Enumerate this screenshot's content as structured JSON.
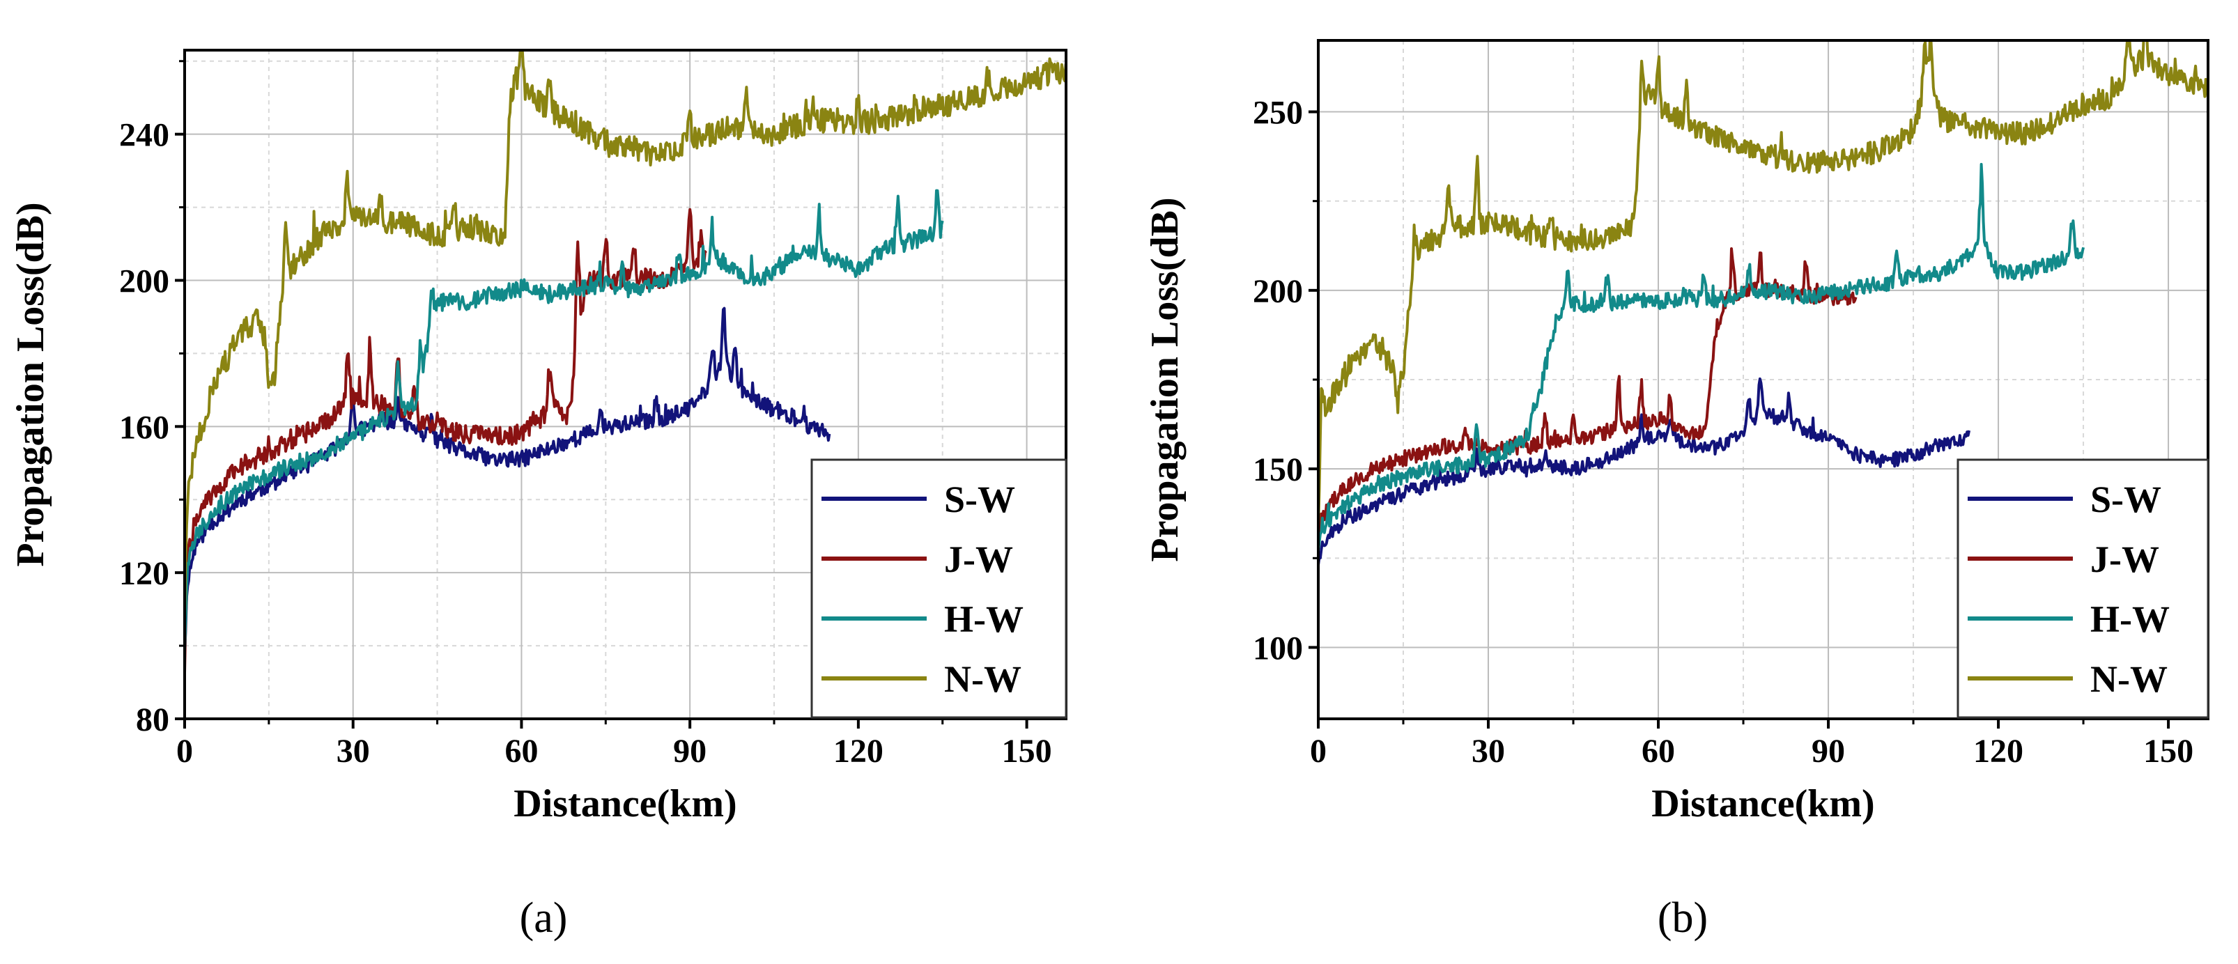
{
  "chart_data": [
    {
      "type": "line",
      "caption": "(a)",
      "xlabel": "Distance(km)",
      "ylabel": "Propagation Loss(dB)",
      "xlim": [
        0,
        157
      ],
      "ylim": [
        80,
        263
      ],
      "xticks": [
        0,
        30,
        60,
        90,
        120,
        150
      ],
      "xtick_labels": [
        "0",
        "30",
        "60",
        "90",
        "120",
        "150"
      ],
      "yticks": [
        80,
        120,
        160,
        200,
        240
      ],
      "ytick_labels": [
        "80",
        "120",
        "160",
        "200",
        "240"
      ],
      "grid": true,
      "legend_position": "bottom-right",
      "series": [
        {
          "name": "S-W",
          "color": "#12137a",
          "seed": 11,
          "noise": 2.2,
          "spikes": [
            [
              30,
              12
            ],
            [
              38,
              10
            ],
            [
              44,
              8
            ],
            [
              74,
              6
            ],
            [
              84,
              8
            ],
            [
              94,
              14
            ],
            [
              96,
              18
            ],
            [
              98,
              12
            ]
          ],
          "x": [
            0,
            0.5,
            2,
            5,
            10,
            15,
            20,
            25,
            30,
            35,
            40,
            45,
            50,
            55,
            60,
            65,
            70,
            75,
            80,
            85,
            90,
            93,
            96,
            98,
            100,
            103,
            106,
            110,
            115
          ],
          "y": [
            98,
            118,
            128,
            134,
            140,
            144,
            148,
            152,
            158,
            162,
            160,
            156,
            153,
            151,
            151,
            154,
            157,
            160,
            161,
            162,
            165,
            170,
            178,
            172,
            168,
            166,
            164,
            161,
            158
          ]
        },
        {
          "name": "J-W",
          "color": "#8a1212",
          "seed": 22,
          "noise": 2.6,
          "spikes": [
            [
              29,
              16
            ],
            [
              33,
              20
            ],
            [
              38,
              22
            ],
            [
              41,
              14
            ],
            [
              65,
              14
            ],
            [
              70,
              28
            ],
            [
              75,
              12
            ],
            [
              80,
              10
            ],
            [
              90,
              20
            ],
            [
              92,
              12
            ]
          ],
          "x": [
            0,
            0.5,
            2,
            5,
            10,
            15,
            20,
            25,
            28,
            30,
            35,
            40,
            45,
            50,
            55,
            60,
            64,
            66,
            68,
            69,
            70,
            72,
            75,
            80,
            85,
            90,
            93
          ],
          "y": [
            94,
            125,
            135,
            142,
            149,
            153,
            157,
            161,
            165,
            168,
            166,
            162,
            160,
            158,
            157,
            158,
            163,
            168,
            162,
            170,
            188,
            200,
            200,
            201,
            200,
            204,
            206
          ]
        },
        {
          "name": "H-W",
          "color": "#128a8a",
          "seed": 33,
          "noise": 2.4,
          "spikes": [
            [
              38,
              14
            ],
            [
              42,
              18
            ],
            [
              44,
              12
            ],
            [
              78,
              8
            ],
            [
              88,
              10
            ],
            [
              94,
              12
            ],
            [
              113,
              14
            ],
            [
              127,
              16
            ],
            [
              134,
              14
            ]
          ],
          "x": [
            0,
            0.5,
            2,
            5,
            10,
            15,
            20,
            25,
            30,
            35,
            40,
            42,
            43,
            44,
            45,
            50,
            55,
            60,
            65,
            70,
            75,
            80,
            85,
            90,
            95,
            100,
            105,
            110,
            115,
            120,
            125,
            130,
            135
          ],
          "y": [
            100,
            122,
            130,
            137,
            143,
            147,
            150,
            153,
            157,
            162,
            165,
            168,
            180,
            190,
            194,
            194,
            196,
            198,
            196,
            198,
            199,
            197,
            199,
            202,
            206,
            200,
            202,
            209,
            206,
            203,
            209,
            211,
            214
          ]
        },
        {
          "name": "N-W",
          "color": "#8a8412",
          "seed": 44,
          "noise": 3.4,
          "spikes": [
            [
              15,
              -16
            ],
            [
              18,
              14
            ],
            [
              29,
              16
            ],
            [
              35,
              10
            ],
            [
              48,
              10
            ],
            [
              60,
              10
            ],
            [
              65,
              10
            ],
            [
              90,
              8
            ],
            [
              100,
              8
            ],
            [
              112,
              8
            ],
            [
              120,
              8
            ],
            [
              143,
              8
            ]
          ],
          "x": [
            0,
            0.5,
            2,
            5,
            8,
            10,
            13,
            15,
            16,
            17,
            18,
            20,
            25,
            30,
            35,
            40,
            45,
            50,
            52,
            55,
            57,
            58,
            59,
            62,
            65,
            70,
            75,
            80,
            85,
            90,
            95,
            100,
            105,
            110,
            115,
            120,
            125,
            130,
            135,
            140,
            145,
            150,
            157
          ],
          "y": [
            110,
            140,
            155,
            170,
            180,
            185,
            190,
            180,
            172,
            192,
            202,
            205,
            214,
            217,
            216,
            215,
            212,
            214,
            215,
            212,
            210,
            250,
            256,
            250,
            247,
            242,
            238,
            236,
            234,
            238,
            241,
            242,
            240,
            243,
            244,
            243,
            244,
            246,
            248,
            250,
            252,
            254,
            258
          ]
        }
      ]
    },
    {
      "type": "line",
      "caption": "(b)",
      "xlabel": "Distance(km)",
      "ylabel": "Propagation Loss(dB)",
      "xlim": [
        0,
        157
      ],
      "ylim": [
        80,
        270
      ],
      "xticks": [
        0,
        30,
        60,
        90,
        120,
        150
      ],
      "xtick_labels": [
        "0",
        "30",
        "60",
        "90",
        "120",
        "150"
      ],
      "yticks": [
        100,
        150,
        200,
        250
      ],
      "ytick_labels": [
        "100",
        "150",
        "200",
        "250"
      ],
      "grid": true,
      "legend_position": "bottom-right",
      "series": [
        {
          "name": "S-W",
          "color": "#12137a",
          "seed": 55,
          "noise": 2.0,
          "spikes": [
            [
              28,
              8
            ],
            [
              40,
              6
            ],
            [
              57,
              8
            ],
            [
              62,
              8
            ],
            [
              76,
              10
            ],
            [
              78,
              12
            ],
            [
              83,
              8
            ]
          ],
          "x": [
            0,
            0.5,
            2,
            5,
            10,
            15,
            20,
            25,
            30,
            35,
            40,
            45,
            50,
            55,
            60,
            65,
            70,
            75,
            78,
            80,
            85,
            90,
            95,
            100,
            105,
            110,
            115
          ],
          "y": [
            124,
            128,
            132,
            136,
            140,
            143,
            146,
            148,
            150,
            151,
            151,
            150,
            152,
            156,
            160,
            157,
            156,
            160,
            166,
            165,
            162,
            158,
            154,
            152,
            154,
            157,
            159
          ]
        },
        {
          "name": "J-W",
          "color": "#8a1212",
          "seed": 66,
          "noise": 2.2,
          "spikes": [
            [
              26,
              8
            ],
            [
              40,
              12
            ],
            [
              45,
              10
            ],
            [
              53,
              18
            ],
            [
              57,
              12
            ],
            [
              62,
              10
            ],
            [
              73,
              16
            ],
            [
              78,
              12
            ],
            [
              86,
              14
            ]
          ],
          "x": [
            0,
            0.5,
            2,
            5,
            10,
            15,
            20,
            25,
            30,
            35,
            40,
            45,
            50,
            55,
            60,
            65,
            68,
            69,
            70,
            72,
            75,
            80,
            85,
            90,
            95
          ],
          "y": [
            130,
            136,
            140,
            145,
            150,
            153,
            155,
            157,
            156,
            156,
            157,
            158,
            160,
            162,
            164,
            160,
            160,
            170,
            188,
            198,
            200,
            200,
            199,
            198,
            198
          ]
        },
        {
          "name": "H-W",
          "color": "#128a8a",
          "seed": 77,
          "noise": 2.2,
          "spikes": [
            [
              28,
              12
            ],
            [
              38,
              8
            ],
            [
              44,
              12
            ],
            [
              51,
              10
            ],
            [
              68,
              8
            ],
            [
              76,
              8
            ],
            [
              102,
              10
            ],
            [
              117,
              24
            ],
            [
              133,
              14
            ]
          ],
          "x": [
            0,
            0.5,
            2,
            5,
            10,
            15,
            20,
            25,
            30,
            35,
            38,
            40,
            42,
            44,
            45,
            50,
            55,
            60,
            65,
            70,
            75,
            80,
            85,
            90,
            95,
            100,
            105,
            110,
            115,
            117,
            120,
            125,
            130,
            135
          ],
          "y": [
            128,
            132,
            136,
            140,
            145,
            148,
            150,
            151,
            153,
            156,
            162,
            178,
            192,
            196,
            196,
            196,
            197,
            197,
            198,
            197,
            199,
            200,
            198,
            199,
            201,
            202,
            204,
            205,
            210,
            214,
            205,
            205,
            208,
            211
          ]
        },
        {
          "name": "N-W",
          "color": "#8a8412",
          "seed": 88,
          "noise": 3.2,
          "spikes": [
            [
              0.6,
              22
            ],
            [
              14,
              -12
            ],
            [
              17,
              12
            ],
            [
              23,
              14
            ],
            [
              28,
              22
            ],
            [
              41,
              10
            ],
            [
              57,
              14
            ],
            [
              60,
              16
            ],
            [
              65,
              12
            ],
            [
              107,
              18
            ],
            [
              108,
              20
            ],
            [
              143,
              14
            ],
            [
              146,
              10
            ]
          ],
          "x": [
            0,
            0.5,
            1,
            3,
            5,
            8,
            10,
            13,
            15,
            16,
            17,
            19,
            22,
            25,
            30,
            35,
            40,
            45,
            50,
            55,
            56,
            57,
            58,
            60,
            65,
            70,
            75,
            80,
            85,
            90,
            95,
            100,
            105,
            107,
            110,
            115,
            120,
            125,
            130,
            135,
            140,
            143,
            146,
            150,
            157
          ],
          "y": [
            135,
            155,
            165,
            172,
            178,
            183,
            186,
            178,
            176,
            196,
            208,
            213,
            216,
            218,
            219,
            217,
            215,
            214,
            215,
            217,
            225,
            250,
            256,
            252,
            247,
            243,
            240,
            238,
            235,
            236,
            237,
            240,
            244,
            258,
            248,
            246,
            244,
            244,
            247,
            252,
            254,
            262,
            265,
            260,
            257
          ]
        }
      ]
    }
  ]
}
